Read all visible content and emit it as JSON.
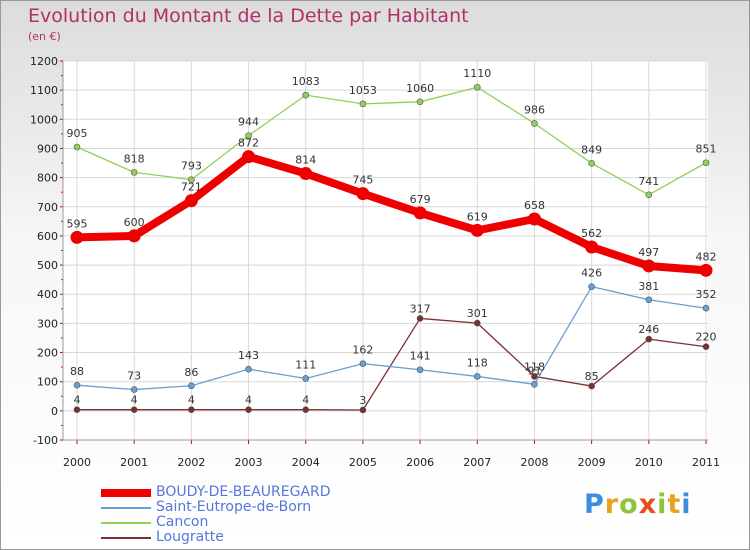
{
  "title": "Evolution du Montant de la Dette par Habitant",
  "subtitle": "(en €)",
  "logo": {
    "letters": [
      "P",
      "r",
      "o",
      "x",
      "i",
      "t",
      "i"
    ],
    "colors": [
      "#3a8de0",
      "#e8a21e",
      "#8cc43c",
      "#e84c1a",
      "#8cc43c",
      "#e8a21e",
      "#3a8de0"
    ]
  },
  "chart_data": {
    "type": "line",
    "categories": [
      "2000",
      "2001",
      "2002",
      "2003",
      "2004",
      "2005",
      "2006",
      "2007",
      "2008",
      "2009",
      "2010",
      "2011"
    ],
    "ylim": [
      -100,
      1200
    ],
    "yticks": [
      "-100",
      "0",
      "100",
      "200",
      "300",
      "400",
      "500",
      "600",
      "700",
      "800",
      "900",
      "1000",
      "1100",
      "1200"
    ],
    "grid": true,
    "legend": "bottom-left",
    "series": [
      {
        "name": "BOUDY-DE-BEAUREGARD",
        "color": "#ee0000",
        "values": [
          595,
          600,
          721,
          872,
          814,
          745,
          679,
          619,
          658,
          562,
          497,
          482
        ]
      },
      {
        "name": "Saint-Eutrope-de-Born",
        "color": "#6a9fd4",
        "values": [
          88,
          73,
          86,
          143,
          111,
          162,
          141,
          118,
          91,
          426,
          381,
          352
        ]
      },
      {
        "name": "Cancon",
        "color": "#8fd15a",
        "values": [
          905,
          818,
          793,
          944,
          1083,
          1053,
          1060,
          1110,
          986,
          849,
          741,
          851
        ]
      },
      {
        "name": "Lougratte",
        "color": "#7b3030",
        "values": [
          4,
          4,
          4,
          4,
          4,
          3,
          317,
          301,
          118,
          85,
          246,
          220
        ]
      }
    ]
  }
}
